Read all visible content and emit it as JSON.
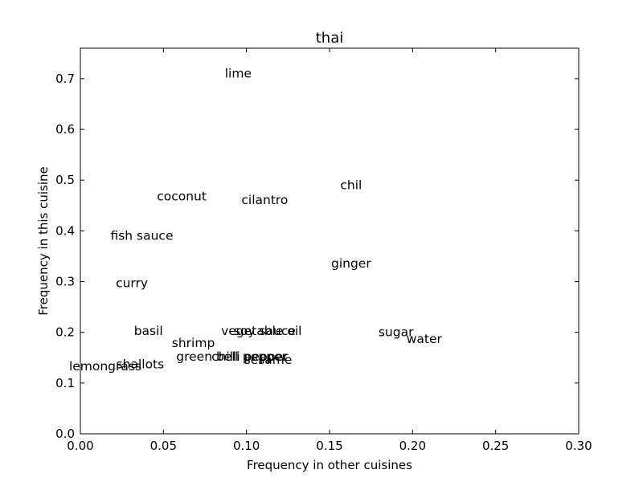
{
  "chart_data": {
    "type": "scatter",
    "title": "thai",
    "xlabel": "Frequency in other cuisines",
    "ylabel": "Frequency in this cuisine",
    "xlim": [
      0.0,
      0.3
    ],
    "ylim": [
      0.0,
      0.76
    ],
    "grid": false,
    "xticks": [
      0.0,
      0.05,
      0.1,
      0.15,
      0.2,
      0.25,
      0.3
    ],
    "xtick_labels": [
      "0.00",
      "0.05",
      "0.10",
      "0.15",
      "0.20",
      "0.25",
      "0.30"
    ],
    "yticks": [
      0.0,
      0.1,
      0.2,
      0.3,
      0.4,
      0.5,
      0.6,
      0.7
    ],
    "ytick_labels": [
      "0.0",
      "0.1",
      "0.2",
      "0.3",
      "0.4",
      "0.5",
      "0.6",
      "0.7"
    ],
    "points": [
      {
        "label": "lime",
        "x": 0.095,
        "y": 0.71
      },
      {
        "label": "chil",
        "x": 0.163,
        "y": 0.49
      },
      {
        "label": "coconut",
        "x": 0.061,
        "y": 0.468
      },
      {
        "label": "cilantro",
        "x": 0.111,
        "y": 0.461
      },
      {
        "label": "fish sauce",
        "x": 0.037,
        "y": 0.39
      },
      {
        "label": "ginger",
        "x": 0.163,
        "y": 0.336
      },
      {
        "label": "curry",
        "x": 0.031,
        "y": 0.297
      },
      {
        "label": "basil",
        "x": 0.041,
        "y": 0.203
      },
      {
        "label": "vegetable oil",
        "x": 0.109,
        "y": 0.203
      },
      {
        "label": "soy sauce",
        "x": 0.111,
        "y": 0.203
      },
      {
        "label": "sugar",
        "x": 0.19,
        "y": 0.2
      },
      {
        "label": "water",
        "x": 0.207,
        "y": 0.187
      },
      {
        "label": "shrimp",
        "x": 0.068,
        "y": 0.179
      },
      {
        "label": "green bell pepper",
        "x": 0.091,
        "y": 0.152
      },
      {
        "label": "chilli pepper",
        "x": 0.102,
        "y": 0.152
      },
      {
        "label": "sesame",
        "x": 0.113,
        "y": 0.146
      },
      {
        "label": "shallots",
        "x": 0.036,
        "y": 0.137
      },
      {
        "label": "lemongrass",
        "x": 0.015,
        "y": 0.133
      }
    ]
  }
}
